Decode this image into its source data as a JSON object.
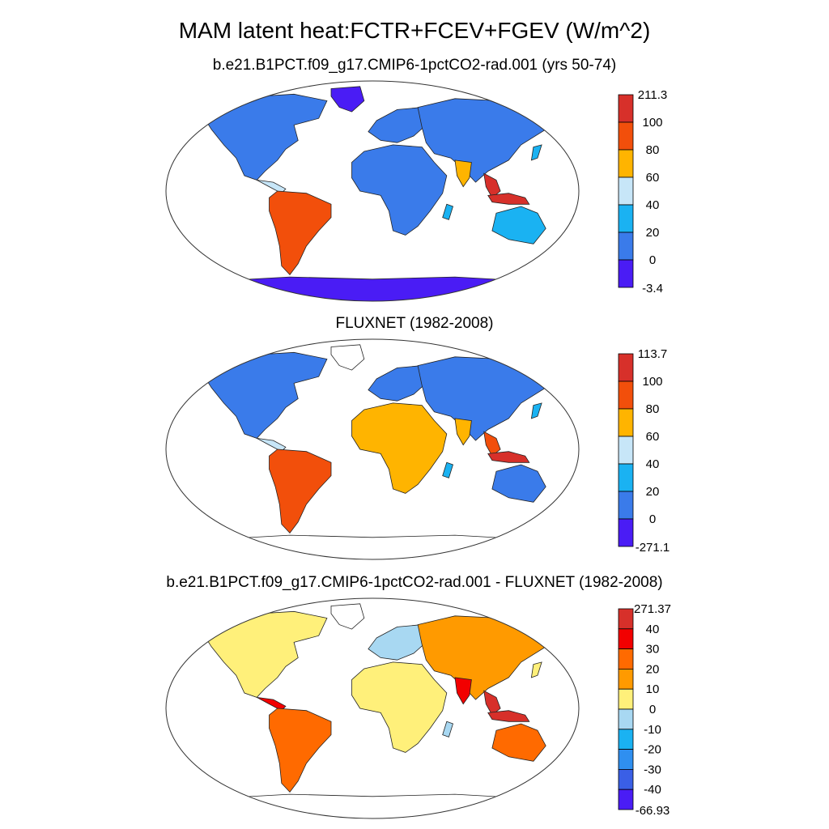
{
  "figure": {
    "title": "MAM latent heat:FCTR+FCEV+FGEV (W/m^2)"
  },
  "panels": [
    {
      "title": "b.e21.B1PCT.f09_g17.CMIP6-1pctCO2-rad.001 (yrs 50-74)",
      "colorbar": {
        "labels": [
          "211.3",
          "100",
          "80",
          "60",
          "40",
          "20",
          "0",
          "-3.4"
        ],
        "colors": [
          "#d7302a",
          "#f24f0b",
          "#ffb400",
          "#c7e6f8",
          "#1ab2f2",
          "#3a7bea",
          "#4a1cf5"
        ]
      }
    },
    {
      "title": "FLUXNET (1982-2008)",
      "colorbar": {
        "labels": [
          "113.7",
          "100",
          "80",
          "60",
          "40",
          "20",
          "0",
          "-271.1"
        ],
        "colors": [
          "#d7302a",
          "#f24f0b",
          "#ffb400",
          "#c7e6f8",
          "#1ab2f2",
          "#3a7bea",
          "#4a1cf5"
        ]
      }
    },
    {
      "title": "b.e21.B1PCT.f09_g17.CMIP6-1pctCO2-rad.001 - FLUXNET (1982-2008)",
      "colorbar": {
        "labels": [
          "271.37",
          "40",
          "30",
          "20",
          "10",
          "0",
          "-10",
          "-20",
          "-30",
          "-40",
          "-66.93"
        ],
        "colors": [
          "#d7302a",
          "#f20000",
          "#ff6a00",
          "#ff9a00",
          "#fff07a",
          "#a8d8f2",
          "#1ab2f2",
          "#2f8ff0",
          "#3a5fe6",
          "#4a1cf5"
        ]
      }
    }
  ]
}
